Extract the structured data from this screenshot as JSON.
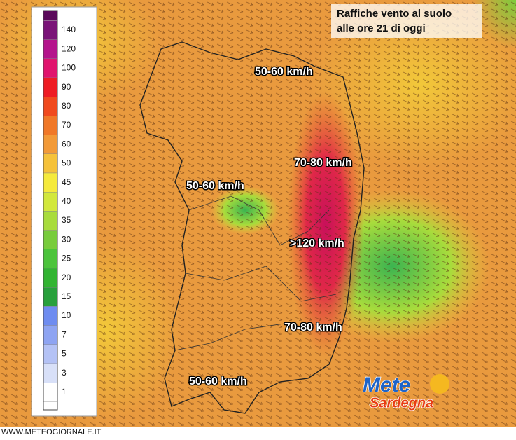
{
  "title": [
    "Raffiche vento al suolo",
    "alle ore 21 di oggi"
  ],
  "legend": {
    "labels": [
      140,
      120,
      100,
      90,
      80,
      70,
      60,
      50,
      45,
      40,
      35,
      30,
      25,
      20,
      15,
      10,
      7,
      5,
      3,
      1
    ],
    "colors": [
      "#7a1478",
      "#b4148c",
      "#e0146e",
      "#ee1c24",
      "#f04a1e",
      "#f07828",
      "#f29a38",
      "#f5c23a",
      "#f5ea3c",
      "#d2e83c",
      "#a8dc3c",
      "#78cc3c",
      "#4cc43c",
      "#32b432",
      "#28a03c",
      "#6e8cf0",
      "#8ea4f2",
      "#b4c2f5",
      "#d8e0f8",
      "#ffffff"
    ]
  },
  "labels": [
    "50-60 km/h",
    "70-80 km/h",
    "50-60 km/h",
    ">120 km/h",
    "70-80 km/h",
    "50-60 km/h"
  ],
  "watermark": "WWW.METEOGIORNALE.IT",
  "logo": [
    "Mete",
    "Sardegna"
  ]
}
